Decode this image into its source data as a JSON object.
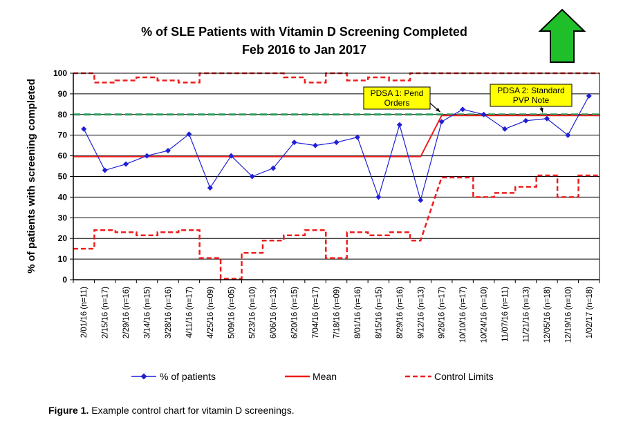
{
  "chart_data": {
    "type": "line",
    "title_line1": "% of SLE Patients with Vitamin D Screening Completed",
    "title_line2": "Feb 2016 to Jan 2017",
    "ylabel": "% of patients with screening completed",
    "xlabel": "",
    "ylim": [
      0,
      100
    ],
    "yticks": [
      0,
      10,
      20,
      30,
      40,
      50,
      60,
      70,
      80,
      90,
      100
    ],
    "grid": "horizontal",
    "legend_position": "bottom",
    "categories": [
      "2/01/16 (n=11)",
      "2/15/16 (n=17)",
      "2/29/16 (n=16)",
      "3/14/16 (n=15)",
      "3/28/16 (n=16)",
      "4/11/16 (n=17)",
      "4/25/16 (n=09)",
      "5/09/16 (n=05)",
      "5/23/16 (n=10)",
      "6/06/16 (n=13)",
      "6/20/16 (n=15)",
      "7/04/16 (n=17)",
      "7/18/16 (n=09)",
      "8/01/16 (n=16)",
      "8/15/16 (n=15)",
      "8/29/16 (n=16)",
      "9/12/16 (n=13)",
      "9/26/16 (n=17)",
      "10/10/16 (n=17)",
      "10/24/16 (n=10)",
      "11/07/16 (n=11)",
      "11/21/16 (n=13)",
      "12/05/16 (n=18)",
      "12/19/16 (n=10)",
      "1/02/17 (n=18)"
    ],
    "series": [
      {
        "name": "% of patients",
        "color": "#1f1fd6",
        "values": [
          73,
          53,
          56,
          60,
          62.5,
          70.5,
          44.5,
          60,
          50,
          54,
          66.5,
          65,
          66.5,
          69,
          40,
          75,
          38.5,
          76.5,
          82.5,
          80,
          73,
          77,
          78,
          70,
          89
        ]
      },
      {
        "name": "Mean",
        "color": "#ee1c1c",
        "values": [
          59.6,
          59.6,
          59.6,
          59.6,
          59.6,
          59.6,
          59.6,
          59.6,
          59.6,
          59.6,
          59.6,
          59.6,
          59.6,
          59.6,
          59.6,
          59.6,
          59.6,
          79.5,
          79.5,
          79.5,
          79.5,
          79.5,
          79.5,
          79.5,
          79.5
        ]
      },
      {
        "name": "Control Limits",
        "color": "#ee1c1c",
        "upper": [
          100,
          95.5,
          96.5,
          98,
          96.5,
          95.5,
          100,
          100,
          100,
          100,
          98,
          95.5,
          100,
          96.5,
          98,
          96.5,
          100,
          100,
          100,
          100,
          100,
          100,
          100,
          100,
          100
        ],
        "lower": [
          15,
          24,
          23,
          21.5,
          23,
          24,
          10.5,
          0.5,
          13,
          19,
          21.5,
          24,
          10.5,
          23,
          21.5,
          23,
          19,
          49.5,
          49.5,
          40,
          42,
          45,
          50.5,
          40,
          50.5
        ]
      }
    ],
    "target": {
      "value": 80,
      "color": "#2e9e5e"
    },
    "annotations": [
      {
        "text_line1": "PDSA 1: Pend",
        "text_line2": "Orders",
        "point_index": 17
      },
      {
        "text_line1": "PDSA 2: Standard",
        "text_line2": "PVP Note",
        "point_index": 22
      }
    ],
    "arrow": {
      "direction": "up",
      "color": "#1fbf2a"
    }
  },
  "caption": {
    "label": "Figure 1.",
    "text": " Example control chart for vitamin D screenings."
  }
}
